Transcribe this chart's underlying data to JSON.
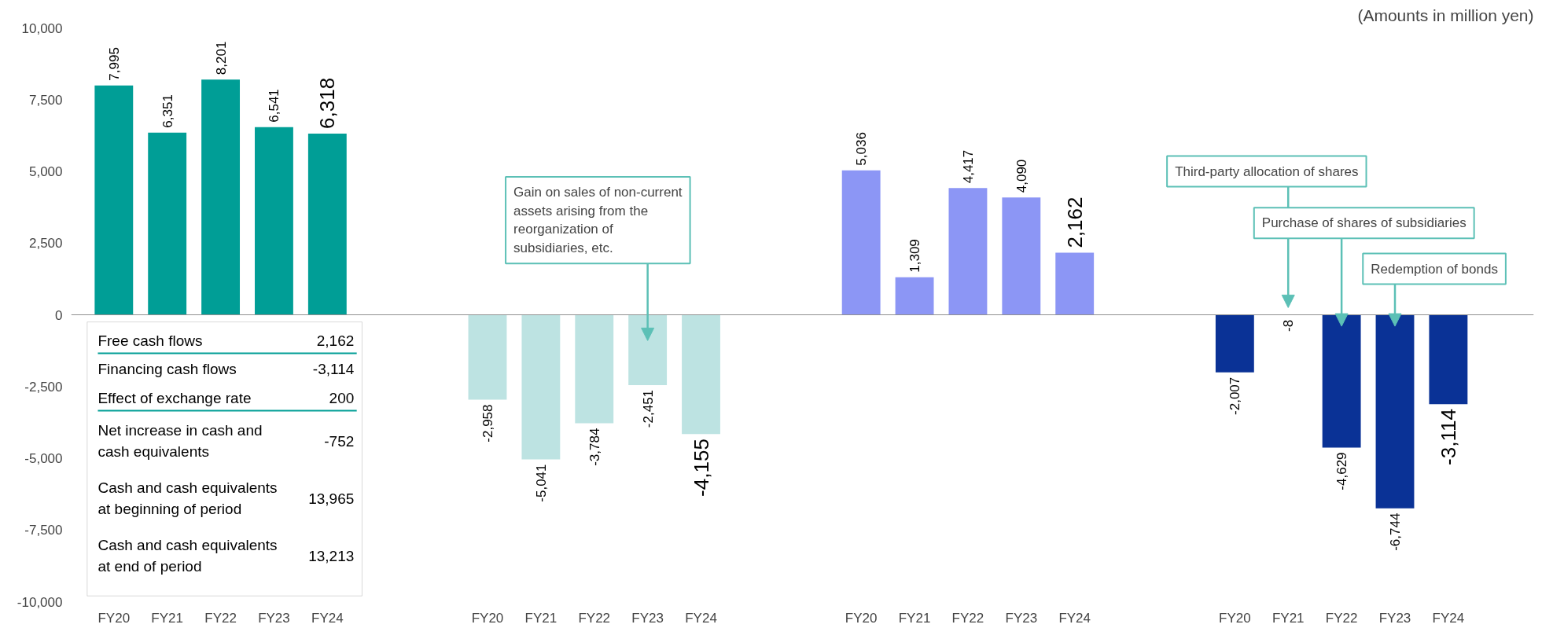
{
  "chart_data": {
    "type": "bar",
    "categories": [
      "FY20",
      "FY21",
      "FY22",
      "FY23",
      "FY24",
      null,
      null,
      "FY20",
      "FY21",
      "FY22",
      "FY23",
      "FY24",
      null,
      null,
      "FY20",
      "FY21",
      "FY22",
      "FY23",
      "FY24",
      null,
      null,
      "FY20",
      "FY21",
      "FY22",
      "FY23",
      "FY24"
    ],
    "series": [
      {
        "color": "#009e96",
        "values": [
          7995,
          6351,
          8201,
          6541,
          6318,
          null,
          null,
          null,
          null,
          null,
          null,
          null,
          null,
          null,
          null,
          null,
          null,
          null,
          null,
          null,
          null,
          null,
          null,
          null,
          null,
          null
        ],
        "value_labels": [
          "7,995",
          "6,351",
          "8,201",
          "6,541",
          "6,318",
          null,
          null,
          null,
          null,
          null,
          null,
          null,
          null,
          null,
          null,
          null,
          null,
          null,
          null,
          null,
          null,
          null,
          null,
          null,
          null,
          null
        ]
      },
      {
        "color": "#bde3e2",
        "values": [
          null,
          null,
          null,
          null,
          null,
          null,
          null,
          -2958,
          -5041,
          -3784,
          -2451,
          -4155,
          null,
          null,
          null,
          null,
          null,
          null,
          null,
          null,
          null,
          null,
          null,
          null,
          null,
          null
        ],
        "value_labels": [
          null,
          null,
          null,
          null,
          null,
          null,
          null,
          "-2,958",
          "-5,041",
          "-3,784",
          "-2,451",
          "-4,155",
          null,
          null,
          null,
          null,
          null,
          null,
          null,
          null,
          null,
          null,
          null,
          null,
          null,
          null
        ]
      },
      {
        "color": "#8c96f5",
        "values": [
          null,
          null,
          null,
          null,
          null,
          null,
          null,
          null,
          null,
          null,
          null,
          null,
          null,
          null,
          5036,
          1309,
          4417,
          4090,
          2162,
          null,
          null,
          null,
          null,
          null,
          null,
          null
        ],
        "value_labels": [
          null,
          null,
          null,
          null,
          null,
          null,
          null,
          null,
          null,
          null,
          null,
          null,
          null,
          null,
          "5,036",
          "1,309",
          "4,417",
          "4,090",
          "2,162",
          null,
          null,
          null,
          null,
          null,
          null,
          null
        ]
      },
      {
        "color": "#0a3296",
        "values": [
          null,
          null,
          null,
          null,
          null,
          null,
          null,
          null,
          null,
          null,
          null,
          null,
          null,
          null,
          null,
          null,
          null,
          null,
          null,
          null,
          null,
          -2007,
          -8,
          -4629,
          -6744,
          -3114
        ],
        "value_labels": [
          null,
          null,
          null,
          null,
          null,
          null,
          null,
          null,
          null,
          null,
          null,
          null,
          null,
          null,
          null,
          null,
          null,
          null,
          null,
          null,
          null,
          "-2,007",
          "-8",
          "-4,629",
          "-6,744",
          "-3,114"
        ]
      }
    ],
    "ylim": [
      -10000,
      10000
    ],
    "yticks": [
      {
        "value": -10000,
        "label": "-10,000"
      },
      {
        "value": -7500,
        "label": "-7,500"
      },
      {
        "value": -5000,
        "label": "-5,000"
      },
      {
        "value": -2500,
        "label": "-2,500"
      },
      0,
      {
        "value": 2500,
        "label": "2,500"
      },
      {
        "value": 5000,
        "label": "5,000"
      },
      {
        "value": 7500,
        "label": "7,500"
      },
      {
        "value": 10000,
        "label": "10,000"
      }
    ],
    "annotations": [
      "(Amounts in million yen)",
      "Gain on sales of non-current assets arising from the reorganization of subsidiaries, etc.",
      "Third-party allocation of shares",
      "Purchase of shares of subsidiaries",
      "Redemption of bonds",
      "Free cash flows",
      "2,162",
      "Financing cash flows",
      "-3,114",
      "Effect of exchange rate",
      "200",
      "Net increase in cash and cash equivalents",
      "-752",
      "Cash and cash equivalents at beginning of period",
      "13,965",
      "Cash and cash equivalents at end of period",
      "13,213"
    ]
  }
}
